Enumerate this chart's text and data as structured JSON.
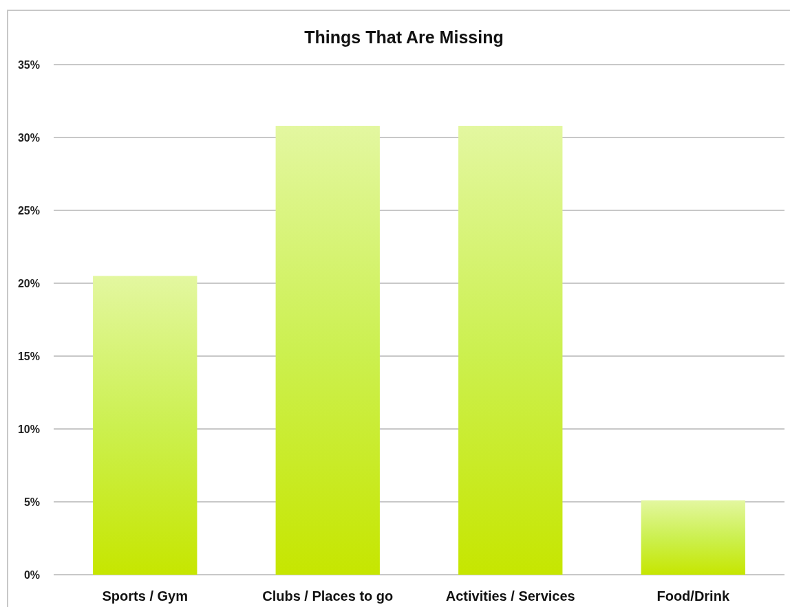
{
  "chart_data": {
    "type": "bar",
    "title": "Things That Are Missing",
    "categories": [
      "Sports / Gym",
      "Clubs / Places to go",
      "Activities / Services",
      "Food/Drink"
    ],
    "values": [
      20.5,
      30.8,
      30.8,
      5.1
    ],
    "color": "#ccf050",
    "ylim": [
      0,
      35
    ],
    "yticks": [
      {
        "value": 0,
        "label": "0%"
      },
      {
        "value": 5,
        "label": "5%"
      },
      {
        "value": 10,
        "label": "10%"
      },
      {
        "value": 15,
        "label": "15%"
      },
      {
        "value": 20,
        "label": "20%"
      },
      {
        "value": 25,
        "label": "25%"
      },
      {
        "value": 30,
        "label": "30%"
      },
      {
        "value": 35,
        "label": "35%"
      }
    ],
    "grid": "y"
  }
}
